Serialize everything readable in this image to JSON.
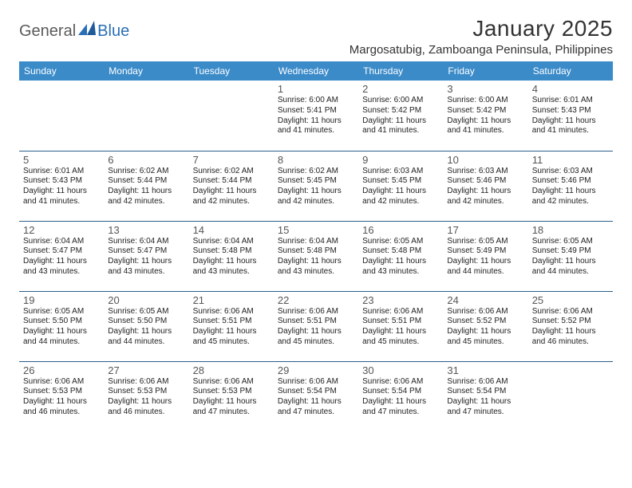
{
  "logo": {
    "general": "General",
    "blue": "Blue"
  },
  "title": "January 2025",
  "location": "Margosatubig, Zamboanga Peninsula, Philippines",
  "colors": {
    "header_bg": "#3b8bc9",
    "header_text": "#ffffff",
    "row_border": "#2c5f8d",
    "logo_blue": "#2a6fb5",
    "logo_gray": "#5a5a5a"
  },
  "day_headers": [
    "Sunday",
    "Monday",
    "Tuesday",
    "Wednesday",
    "Thursday",
    "Friday",
    "Saturday"
  ],
  "weeks": [
    [
      null,
      null,
      null,
      {
        "n": "1",
        "sr": "6:00 AM",
        "ss": "5:41 PM",
        "dl": "11 hours and 41 minutes."
      },
      {
        "n": "2",
        "sr": "6:00 AM",
        "ss": "5:42 PM",
        "dl": "11 hours and 41 minutes."
      },
      {
        "n": "3",
        "sr": "6:00 AM",
        "ss": "5:42 PM",
        "dl": "11 hours and 41 minutes."
      },
      {
        "n": "4",
        "sr": "6:01 AM",
        "ss": "5:43 PM",
        "dl": "11 hours and 41 minutes."
      }
    ],
    [
      {
        "n": "5",
        "sr": "6:01 AM",
        "ss": "5:43 PM",
        "dl": "11 hours and 41 minutes."
      },
      {
        "n": "6",
        "sr": "6:02 AM",
        "ss": "5:44 PM",
        "dl": "11 hours and 42 minutes."
      },
      {
        "n": "7",
        "sr": "6:02 AM",
        "ss": "5:44 PM",
        "dl": "11 hours and 42 minutes."
      },
      {
        "n": "8",
        "sr": "6:02 AM",
        "ss": "5:45 PM",
        "dl": "11 hours and 42 minutes."
      },
      {
        "n": "9",
        "sr": "6:03 AM",
        "ss": "5:45 PM",
        "dl": "11 hours and 42 minutes."
      },
      {
        "n": "10",
        "sr": "6:03 AM",
        "ss": "5:46 PM",
        "dl": "11 hours and 42 minutes."
      },
      {
        "n": "11",
        "sr": "6:03 AM",
        "ss": "5:46 PM",
        "dl": "11 hours and 42 minutes."
      }
    ],
    [
      {
        "n": "12",
        "sr": "6:04 AM",
        "ss": "5:47 PM",
        "dl": "11 hours and 43 minutes."
      },
      {
        "n": "13",
        "sr": "6:04 AM",
        "ss": "5:47 PM",
        "dl": "11 hours and 43 minutes."
      },
      {
        "n": "14",
        "sr": "6:04 AM",
        "ss": "5:48 PM",
        "dl": "11 hours and 43 minutes."
      },
      {
        "n": "15",
        "sr": "6:04 AM",
        "ss": "5:48 PM",
        "dl": "11 hours and 43 minutes."
      },
      {
        "n": "16",
        "sr": "6:05 AM",
        "ss": "5:48 PM",
        "dl": "11 hours and 43 minutes."
      },
      {
        "n": "17",
        "sr": "6:05 AM",
        "ss": "5:49 PM",
        "dl": "11 hours and 44 minutes."
      },
      {
        "n": "18",
        "sr": "6:05 AM",
        "ss": "5:49 PM",
        "dl": "11 hours and 44 minutes."
      }
    ],
    [
      {
        "n": "19",
        "sr": "6:05 AM",
        "ss": "5:50 PM",
        "dl": "11 hours and 44 minutes."
      },
      {
        "n": "20",
        "sr": "6:05 AM",
        "ss": "5:50 PM",
        "dl": "11 hours and 44 minutes."
      },
      {
        "n": "21",
        "sr": "6:06 AM",
        "ss": "5:51 PM",
        "dl": "11 hours and 45 minutes."
      },
      {
        "n": "22",
        "sr": "6:06 AM",
        "ss": "5:51 PM",
        "dl": "11 hours and 45 minutes."
      },
      {
        "n": "23",
        "sr": "6:06 AM",
        "ss": "5:51 PM",
        "dl": "11 hours and 45 minutes."
      },
      {
        "n": "24",
        "sr": "6:06 AM",
        "ss": "5:52 PM",
        "dl": "11 hours and 45 minutes."
      },
      {
        "n": "25",
        "sr": "6:06 AM",
        "ss": "5:52 PM",
        "dl": "11 hours and 46 minutes."
      }
    ],
    [
      {
        "n": "26",
        "sr": "6:06 AM",
        "ss": "5:53 PM",
        "dl": "11 hours and 46 minutes."
      },
      {
        "n": "27",
        "sr": "6:06 AM",
        "ss": "5:53 PM",
        "dl": "11 hours and 46 minutes."
      },
      {
        "n": "28",
        "sr": "6:06 AM",
        "ss": "5:53 PM",
        "dl": "11 hours and 47 minutes."
      },
      {
        "n": "29",
        "sr": "6:06 AM",
        "ss": "5:54 PM",
        "dl": "11 hours and 47 minutes."
      },
      {
        "n": "30",
        "sr": "6:06 AM",
        "ss": "5:54 PM",
        "dl": "11 hours and 47 minutes."
      },
      {
        "n": "31",
        "sr": "6:06 AM",
        "ss": "5:54 PM",
        "dl": "11 hours and 47 minutes."
      },
      null
    ]
  ],
  "labels": {
    "sunrise": "Sunrise:",
    "sunset": "Sunset:",
    "daylight": "Daylight:"
  }
}
